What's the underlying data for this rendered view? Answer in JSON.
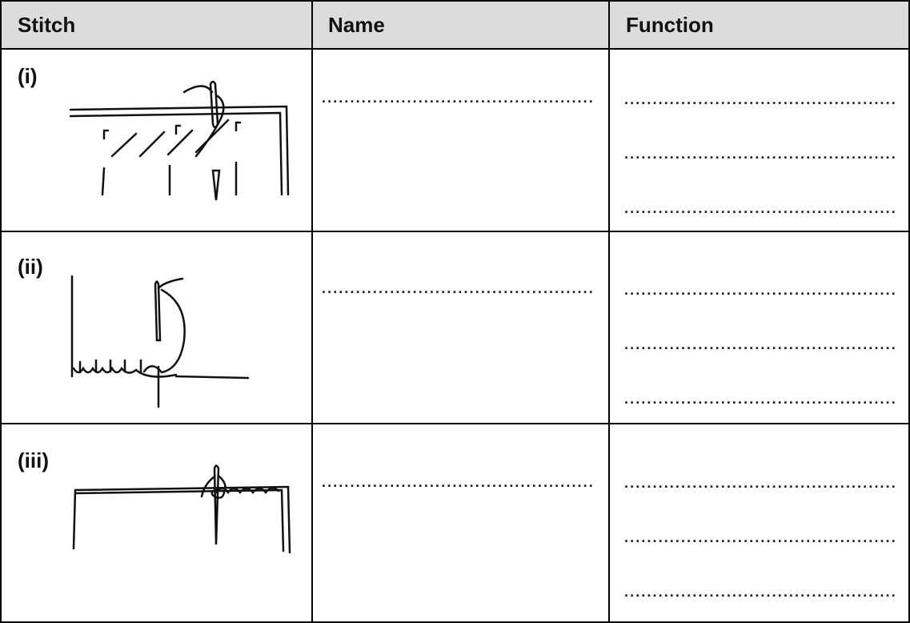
{
  "table": {
    "headers": [
      "Stitch",
      "Name",
      "Function"
    ],
    "rows": [
      {
        "label": "(i)",
        "name": "................................................",
        "function": [
          "................................................",
          "................................................",
          "................................................"
        ]
      },
      {
        "label": "(ii)",
        "name": "................................................",
        "function": [
          "................................................",
          "................................................",
          "................................................"
        ]
      },
      {
        "label": "(iii)",
        "name": "................................................",
        "function": [
          "................................................",
          "................................................",
          "................................................"
        ]
      }
    ]
  }
}
